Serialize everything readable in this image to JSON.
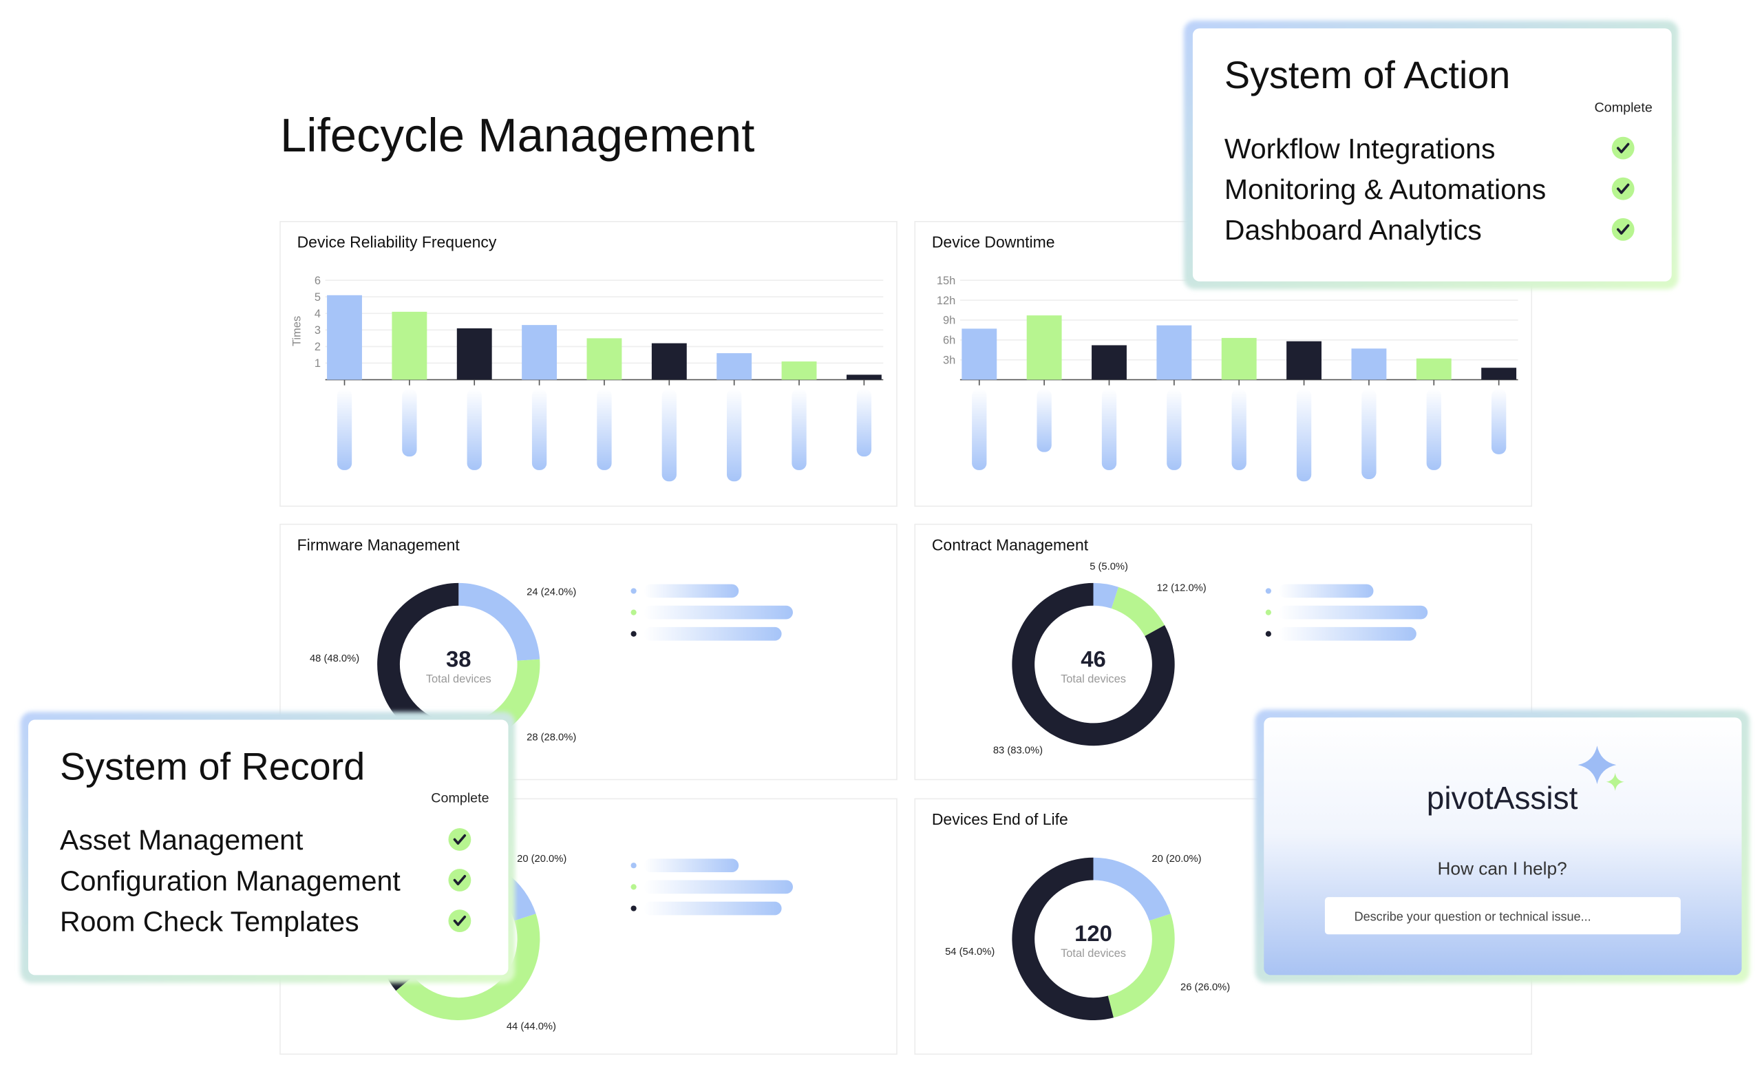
{
  "title": "Lifecycle Management",
  "chart_data": [
    {
      "type": "bar",
      "title": "Device Reliability Frequency",
      "y_label": "Times",
      "values": [
        5.1,
        4.1,
        3.1,
        3.3,
        2.5,
        2.2,
        1.6,
        1.1,
        0.3
      ],
      "colors": [
        "#a6c4f8",
        "#b7f590",
        "#1d1f30",
        "#a6c4f8",
        "#b7f590",
        "#1d1f30",
        "#a6c4f8",
        "#b7f590",
        "#1d1f30"
      ],
      "ylim": [
        0,
        6
      ],
      "yticks": [
        1,
        2,
        3,
        4,
        5,
        6
      ],
      "grid": true
    },
    {
      "type": "bar",
      "title": "Device Downtime",
      "values": [
        7.7,
        9.7,
        5.2,
        8.2,
        6.3,
        5.8,
        4.7,
        3.2,
        1.8
      ],
      "colors": [
        "#a6c4f8",
        "#b7f590",
        "#1d1f30",
        "#a6c4f8",
        "#b7f590",
        "#1d1f30",
        "#a6c4f8",
        "#b7f590",
        "#1d1f30"
      ],
      "ylim": [
        0,
        15
      ],
      "yticks": [
        {
          "value": 3,
          "label": "3h"
        },
        {
          "value": 6,
          "label": "6h"
        },
        {
          "value": 9,
          "label": "9h"
        },
        {
          "value": 12,
          "label": "12h"
        },
        {
          "value": 15,
          "label": "15h"
        }
      ],
      "grid": true
    },
    {
      "type": "donut",
      "title": "Firmware Management",
      "total": 38,
      "total_label": "Total devices",
      "values": [
        24,
        28,
        48
      ],
      "value_labels": [
        "24 (24.0%)",
        "28 (28.0%)",
        "48 (48.0%)"
      ],
      "colors": [
        "#a6c4f8",
        "#b7f590",
        "#1d1f30"
      ]
    },
    {
      "type": "donut",
      "title": "Contract Management",
      "total": 46,
      "total_label": "Total devices",
      "values": [
        5,
        12,
        83
      ],
      "value_labels": [
        "5 (5.0%)",
        "12 (12.0%)",
        "83 (83.0%)"
      ],
      "colors": [
        "#a6c4f8",
        "#b7f590",
        "#1d1f30"
      ]
    },
    {
      "type": "donut",
      "values": [
        20,
        44,
        36
      ],
      "value_labels": [
        "20 (20.0%)",
        "44 (44.0%)",
        null
      ],
      "colors": [
        "#a6c4f8",
        "#b7f590",
        "#1d1f30"
      ]
    },
    {
      "type": "donut",
      "title": "Devices End of Life",
      "total": 120,
      "total_label": "Total devices",
      "values": [
        20,
        26,
        54
      ],
      "value_labels": [
        "20 (20.0%)",
        "26 (26.0%)",
        "54 (54.0%)"
      ],
      "colors": [
        "#a6c4f8",
        "#b7f590",
        "#1d1f30"
      ]
    }
  ],
  "system_of_action": {
    "title": "System of Action",
    "status_header": "Complete",
    "items": [
      "Workflow Integrations",
      "Monitoring & Automations",
      "Dashboard Analytics"
    ]
  },
  "system_of_record": {
    "title": "System of Record",
    "status_header": "Complete",
    "items": [
      "Asset Management",
      "Configuration Management",
      "Room Check Templates"
    ]
  },
  "assistant": {
    "logo_left": "pivot",
    "logo_right": "Assist",
    "prompt": "How can I help?",
    "input_placeholder": "Describe your question or technical issue..."
  }
}
